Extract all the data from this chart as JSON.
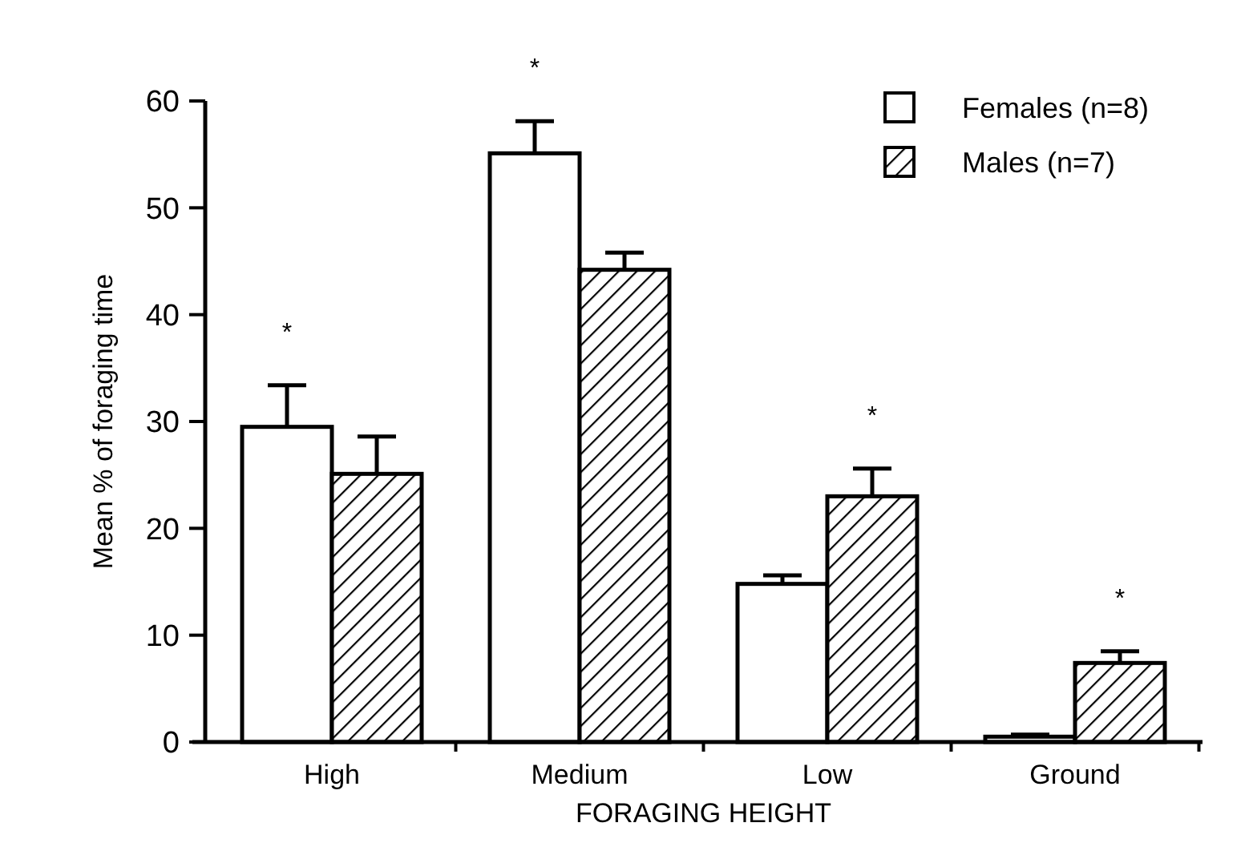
{
  "chart_data": {
    "type": "bar",
    "xlabel": "FORAGING HEIGHT",
    "ylabel": "Mean % of foraging time",
    "categories": [
      "High",
      "Medium",
      "Low",
      "Ground"
    ],
    "series": [
      {
        "name": "Females (n=8)",
        "color": "#ffffff",
        "values": [
          29.5,
          55.1,
          14.8,
          0.5
        ],
        "errors": [
          3.9,
          3.0,
          0.8,
          0.2
        ]
      },
      {
        "name": "Males (n=7)",
        "color": "#000000",
        "values": [
          25.1,
          44.2,
          23.0,
          7.4
        ],
        "errors": [
          3.5,
          1.6,
          2.6,
          1.1
        ]
      }
    ],
    "annotations": [
      "*",
      "*",
      "*",
      "*"
    ],
    "ylim": [
      0,
      60
    ],
    "yticks": [
      0,
      10,
      20,
      30,
      40,
      50,
      60
    ],
    "legend": "top right",
    "grid": false
  }
}
